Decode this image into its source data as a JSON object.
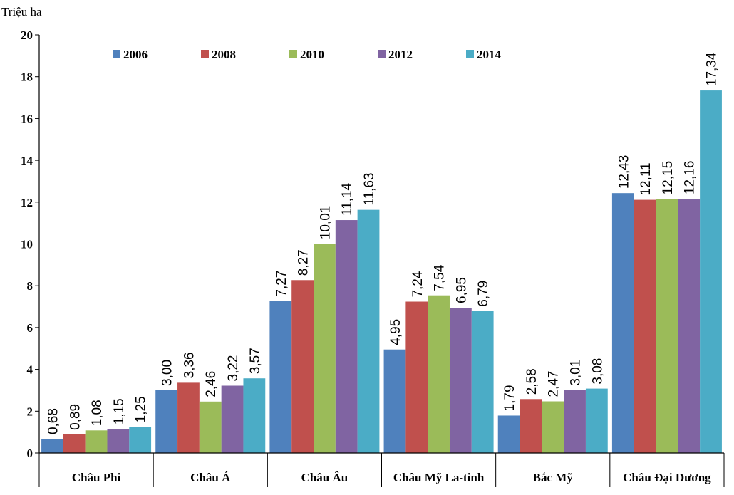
{
  "chart_data": {
    "type": "bar",
    "unit_label": "Triệu ha",
    "categories": [
      "Châu Phi",
      "Châu Á",
      "Châu Âu",
      "Châu Mỹ La-tinh",
      "Bắc Mỹ",
      "Châu Đại Dương"
    ],
    "series": [
      {
        "name": "2006",
        "color": "#4f81bd",
        "values": [
          0.68,
          3.0,
          7.27,
          4.95,
          1.79,
          12.43
        ],
        "labels": [
          "0,68",
          "3,00",
          "7,27",
          "4,95",
          "1,79",
          "12,43"
        ]
      },
      {
        "name": "2008",
        "color": "#c0504d",
        "values": [
          0.89,
          3.36,
          8.27,
          7.24,
          2.58,
          12.11
        ],
        "labels": [
          "0,89",
          "3,36",
          "8,27",
          "7,24",
          "2,58",
          "12,11"
        ]
      },
      {
        "name": "2010",
        "color": "#9bbb59",
        "values": [
          1.08,
          2.46,
          10.01,
          7.54,
          2.47,
          12.15
        ],
        "labels": [
          "1,08",
          "2,46",
          "10,01",
          "7,54",
          "2,47",
          "12,15"
        ]
      },
      {
        "name": "2012",
        "color": "#8064a2",
        "values": [
          1.15,
          3.22,
          11.14,
          6.95,
          3.01,
          12.16
        ],
        "labels": [
          "1,15",
          "3,22",
          "11,14",
          "6,95",
          "3,01",
          "12,16"
        ]
      },
      {
        "name": "2014",
        "color": "#4bacc6",
        "values": [
          1.25,
          3.57,
          11.63,
          6.79,
          3.08,
          17.34
        ],
        "labels": [
          "1,25",
          "3,57",
          "11,63",
          "6,79",
          "3,08",
          "17,34"
        ]
      }
    ],
    "ylim": [
      0,
      20
    ],
    "yticks": [
      "0",
      "2",
      "4",
      "6",
      "8",
      "10",
      "12",
      "14",
      "16",
      "18",
      "20"
    ],
    "grid": false,
    "legend_position": "top"
  }
}
